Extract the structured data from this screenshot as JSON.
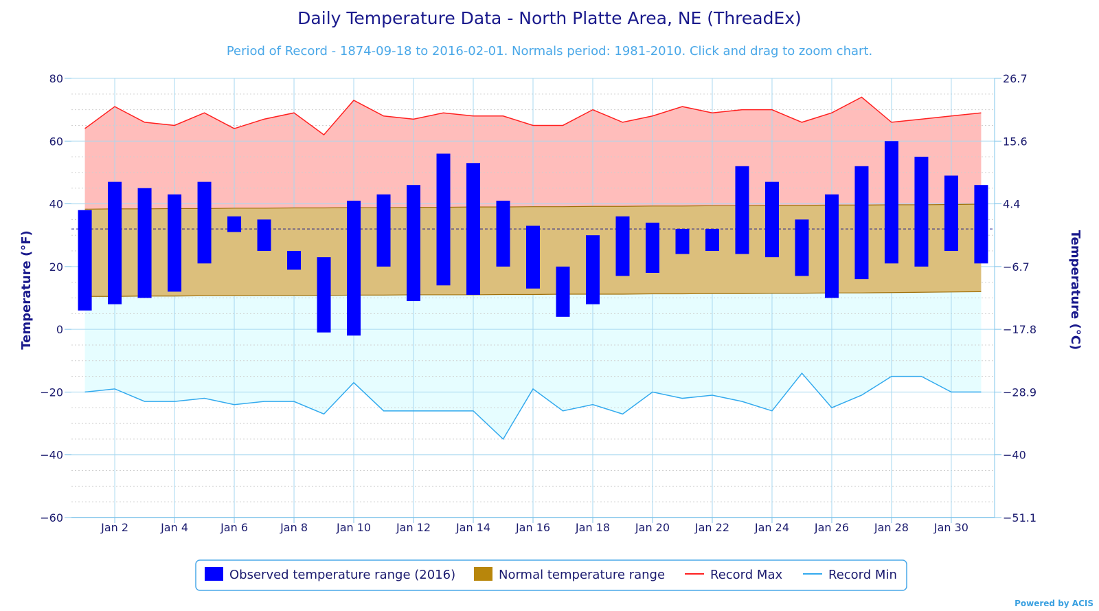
{
  "chart_data": {
    "type": "bar",
    "title": "Daily Temperature Data - North Platte Area, NE (ThreadEx)",
    "subtitle": "Period of Record - 1874-09-18 to 2016-02-01. Normals period: 1981-2010. Click and drag to zoom chart.",
    "ylabel_left": "Temperature (°F)",
    "ylabel_right": "Temperature (°C)",
    "ylim": [
      -60,
      80
    ],
    "y_ticks": [
      -60,
      -40,
      -20,
      0,
      20,
      40,
      60,
      80
    ],
    "y_ticks_right": [
      "-51.1",
      "-40",
      "-28.9",
      "-17.8",
      "-6.7",
      "4.4",
      "15.6",
      "26.7"
    ],
    "x_ticks": [
      "Jan 2",
      "Jan 4",
      "Jan 6",
      "Jan 8",
      "Jan 10",
      "Jan 12",
      "Jan 14",
      "Jan 16",
      "Jan 18",
      "Jan 20",
      "Jan 22",
      "Jan 24",
      "Jan 26",
      "Jan 28",
      "Jan 30"
    ],
    "x_tick_days": [
      2,
      4,
      6,
      8,
      10,
      12,
      14,
      16,
      18,
      20,
      22,
      24,
      26,
      28,
      30
    ],
    "x_days": [
      1,
      2,
      3,
      4,
      5,
      6,
      7,
      8,
      9,
      10,
      11,
      12,
      13,
      14,
      15,
      16,
      17,
      18,
      19,
      20,
      21,
      22,
      23,
      24,
      25,
      26,
      27,
      28,
      29,
      30,
      31
    ],
    "freezing_line": 32,
    "series": [
      {
        "name": "Observed temperature range (2016)",
        "color": "#0000ff",
        "high": [
          38,
          47,
          45,
          43,
          47,
          36,
          35,
          25,
          23,
          41,
          43,
          46,
          56,
          53,
          41,
          33,
          20,
          30,
          36,
          34,
          32,
          32,
          52,
          47,
          35,
          43,
          52,
          60,
          55,
          49,
          46
        ],
        "low": [
          6,
          8,
          10,
          12,
          21,
          31,
          25,
          19,
          -1,
          -2,
          20,
          9,
          14,
          11,
          20,
          13,
          4,
          8,
          17,
          18,
          24,
          25,
          24,
          23,
          17,
          10,
          16,
          21,
          20,
          25,
          21
        ]
      },
      {
        "name": "Normal temperature range",
        "color": "#b8860b",
        "high": [
          38.3,
          38.4,
          38.4,
          38.5,
          38.5,
          38.6,
          38.6,
          38.7,
          38.7,
          38.8,
          38.8,
          38.9,
          38.9,
          39.0,
          39.0,
          39.1,
          39.1,
          39.2,
          39.2,
          39.3,
          39.3,
          39.4,
          39.4,
          39.5,
          39.5,
          39.6,
          39.6,
          39.7,
          39.7,
          39.8,
          39.9
        ],
        "low": [
          10.5,
          10.5,
          10.6,
          10.6,
          10.7,
          10.7,
          10.8,
          10.8,
          10.8,
          10.9,
          10.9,
          11.0,
          11.0,
          11.0,
          11.1,
          11.1,
          11.2,
          11.2,
          11.2,
          11.3,
          11.3,
          11.4,
          11.4,
          11.5,
          11.5,
          11.6,
          11.6,
          11.7,
          11.8,
          11.9,
          12.0
        ]
      },
      {
        "name": "Record Max",
        "color": "#ff2020",
        "values": [
          64,
          71,
          66,
          65,
          69,
          64,
          67,
          69,
          62,
          73,
          68,
          67,
          69,
          68,
          68,
          65,
          65,
          70,
          66,
          68,
          71,
          69,
          70,
          70,
          66,
          69,
          74,
          66,
          67,
          68,
          69
        ]
      },
      {
        "name": "Record Min",
        "color": "#33aaee",
        "values": [
          -20,
          -19,
          -23,
          -23,
          -22,
          -24,
          -23,
          -23,
          -27,
          -17,
          -26,
          -26,
          -26,
          -26,
          -35,
          -19,
          -26,
          -24,
          -27,
          -20,
          -22,
          -21,
          -23,
          -26,
          -14,
          -25,
          -21,
          -15,
          -15,
          -20,
          -20
        ]
      }
    ],
    "legend": [
      "Observed temperature range (2016)",
      "Normal temperature range",
      "Record Max",
      "Record Min"
    ],
    "legend_position": "bottom-center",
    "grid": true
  },
  "credits": "Powered by ACIS",
  "colors": {
    "record_band": "#ffbdbb",
    "normal_band": "#dcbf7c",
    "below_band": "#e6fdff",
    "grid": "#a8d8f0",
    "freezing_line": "#1a1a8c"
  }
}
